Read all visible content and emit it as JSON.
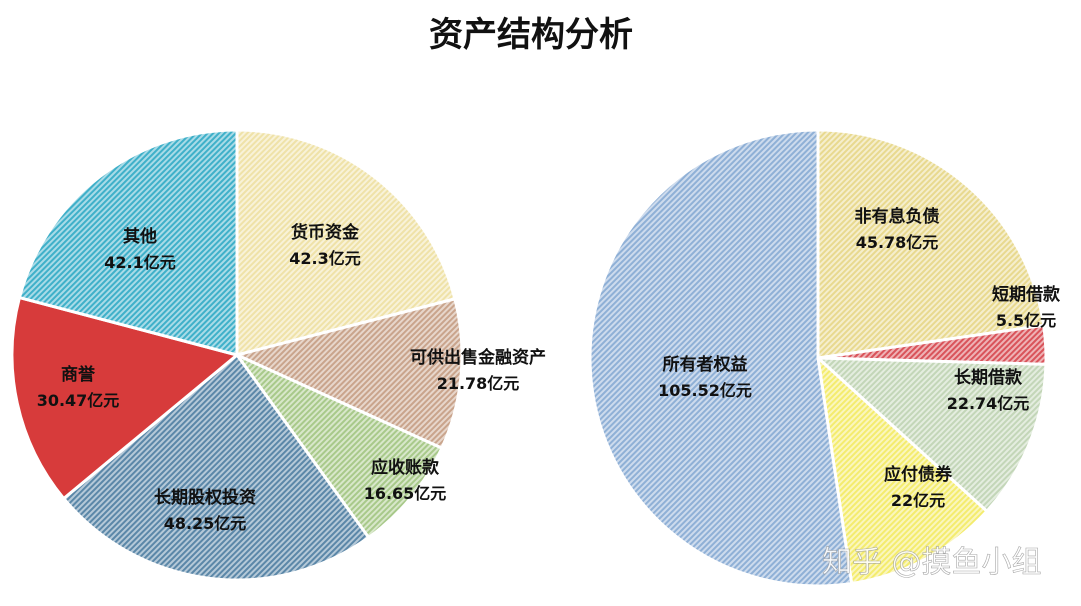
{
  "title": "资产结构分析",
  "watermark": "知乎 @摸鱼小组",
  "chart_data": [
    {
      "type": "pie",
      "title": "资产结构分析",
      "unit": "亿元",
      "slices": [
        {
          "name": "货币资金",
          "value": 42.3,
          "value_label": "42.3亿元",
          "color": "#efe2a8",
          "pattern": "diag"
        },
        {
          "name": "可供出售金融资产",
          "value": 21.78,
          "value_label": "21.78亿元",
          "color": "#c9a48c",
          "pattern": "diag"
        },
        {
          "name": "应收账款",
          "value": 16.65,
          "value_label": "16.65亿元",
          "color": "#a8c98a",
          "pattern": "diag"
        },
        {
          "name": "长期股权投资",
          "value": 48.25,
          "value_label": "48.25亿元",
          "color": "#5b87a8",
          "pattern": "diag"
        },
        {
          "name": "商誉",
          "value": 30.47,
          "value_label": "30.47亿元",
          "color": "#d73b3b",
          "pattern": "solid"
        },
        {
          "name": "其他",
          "value": 42.1,
          "value_label": "42.1亿元",
          "color": "#3fb0c9",
          "pattern": "diag"
        }
      ]
    },
    {
      "type": "pie",
      "unit": "亿元",
      "slices": [
        {
          "name": "非有息负债",
          "value": 45.78,
          "value_label": "45.78亿元",
          "color": "#e8d98f",
          "pattern": "diag"
        },
        {
          "name": "短期借款",
          "value": 5.5,
          "value_label": "5.5亿元",
          "color": "#d9535a",
          "pattern": "diag"
        },
        {
          "name": "长期借款",
          "value": 22.74,
          "value_label": "22.74亿元",
          "color": "#c3d6b8",
          "pattern": "diag"
        },
        {
          "name": "应付债券",
          "value": 22,
          "value_label": "22亿元",
          "color": "#f4ec6e",
          "pattern": "diag"
        },
        {
          "name": "所有者权益",
          "value": 105.52,
          "value_label": "105.52亿元",
          "color": "#8fb0d6",
          "pattern": "diag"
        }
      ]
    }
  ]
}
